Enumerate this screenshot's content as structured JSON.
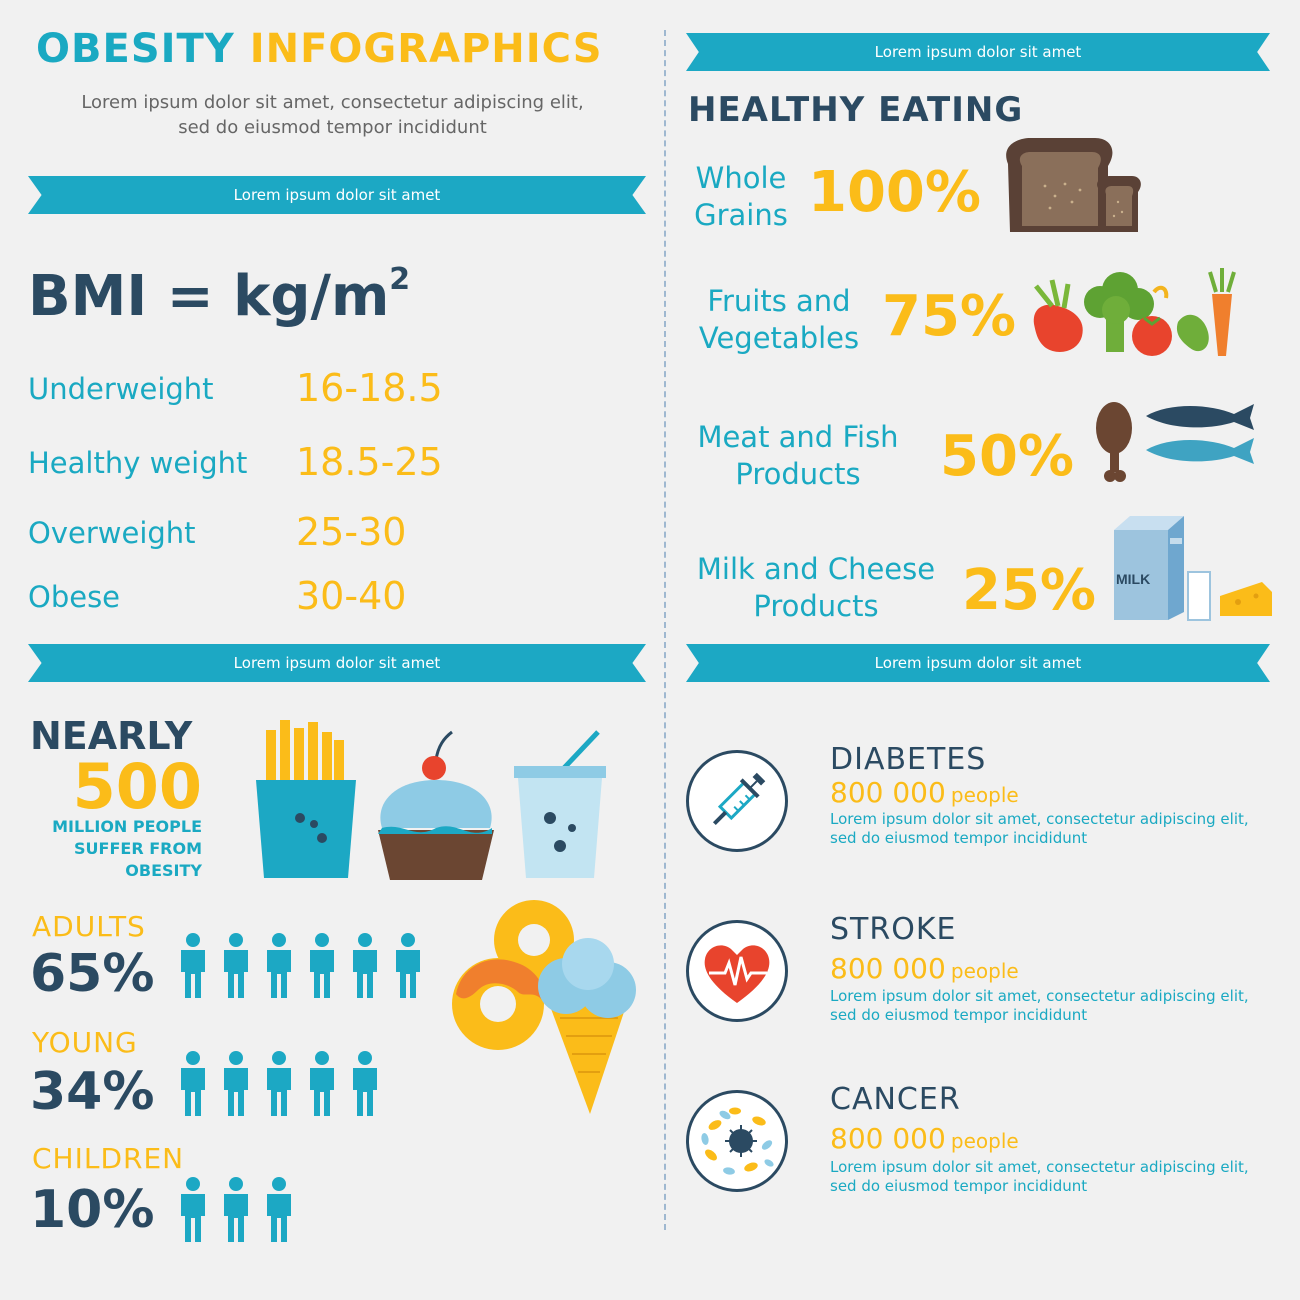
{
  "header": {
    "title_part1": "OBESITY",
    "title_part2": "INFOGRAPHICS",
    "subtitle_line1": "Lorem ipsum dolor sit amet, consectetur adipiscing elit,",
    "subtitle_line2": "sed do eiusmod tempor incididunt"
  },
  "ribbons": {
    "top_left": "Lorem ipsum dolor sit amet",
    "top_right": "Lorem ipsum dolor sit amet",
    "mid_left": "Lorem ipsum dolor sit amet",
    "mid_right": "Lorem ipsum dolor sit amet"
  },
  "bmi": {
    "formula": "BMI = kg/m",
    "exponent": "2",
    "rows": [
      {
        "label": "Underweight",
        "value": "16-18.5"
      },
      {
        "label": "Healthy weight",
        "value": "18.5-25"
      },
      {
        "label": "Overweight",
        "value": "25-30"
      },
      {
        "label": "Obese",
        "value": "30-40"
      }
    ]
  },
  "healthy_eating": {
    "title": "HEALTHY EATING",
    "items": [
      {
        "line1": "Whole",
        "line2": "Grains",
        "percent": "100%"
      },
      {
        "line1": "Fruits and",
        "line2": "Vegetables",
        "percent": "75%"
      },
      {
        "line1": "Meat and Fish",
        "line2": "Products",
        "percent": "50%"
      },
      {
        "line1": "Milk and Cheese",
        "line2": "Products",
        "percent": "25%"
      }
    ],
    "milk_carton_label": "MILK"
  },
  "nearly": {
    "label": "NEARLY",
    "number": "500",
    "line1": "MILLION PEOPLE",
    "line2": "SUFFER FROM",
    "line3": "OBESITY"
  },
  "groups": [
    {
      "label": "ADULTS",
      "percent": "65%",
      "icons": 6
    },
    {
      "label": "YOUNG",
      "percent": "34%",
      "icons": 5
    },
    {
      "label": "CHILDREN",
      "percent": "10%",
      "icons": 3
    }
  ],
  "diseases": [
    {
      "name": "DIABETES",
      "number": "800 000",
      "unit": "people",
      "desc1": "Lorem ipsum dolor sit amet, consectetur adipiscing elit,",
      "desc2": " sed do eiusmod tempor incididunt",
      "icon": "syringe-icon"
    },
    {
      "name": "STROKE",
      "number": "800 000",
      "unit": "people",
      "desc1": "Lorem ipsum dolor sit amet, consectetur adipiscing elit,",
      "desc2": " sed do eiusmod tempor incididunt",
      "icon": "heart-pulse-icon"
    },
    {
      "name": "CANCER",
      "number": "800 000",
      "unit": "people",
      "desc1": "Lorem ipsum dolor sit amet, consectetur adipiscing elit,",
      "desc2": " sed do eiusmod tempor incididunt",
      "icon": "cancer-cells-icon"
    }
  ],
  "colors": {
    "teal": "#1aa9c2",
    "navy": "#2b4a62",
    "yellow": "#fbbc19",
    "background": "#f1f1f1"
  }
}
